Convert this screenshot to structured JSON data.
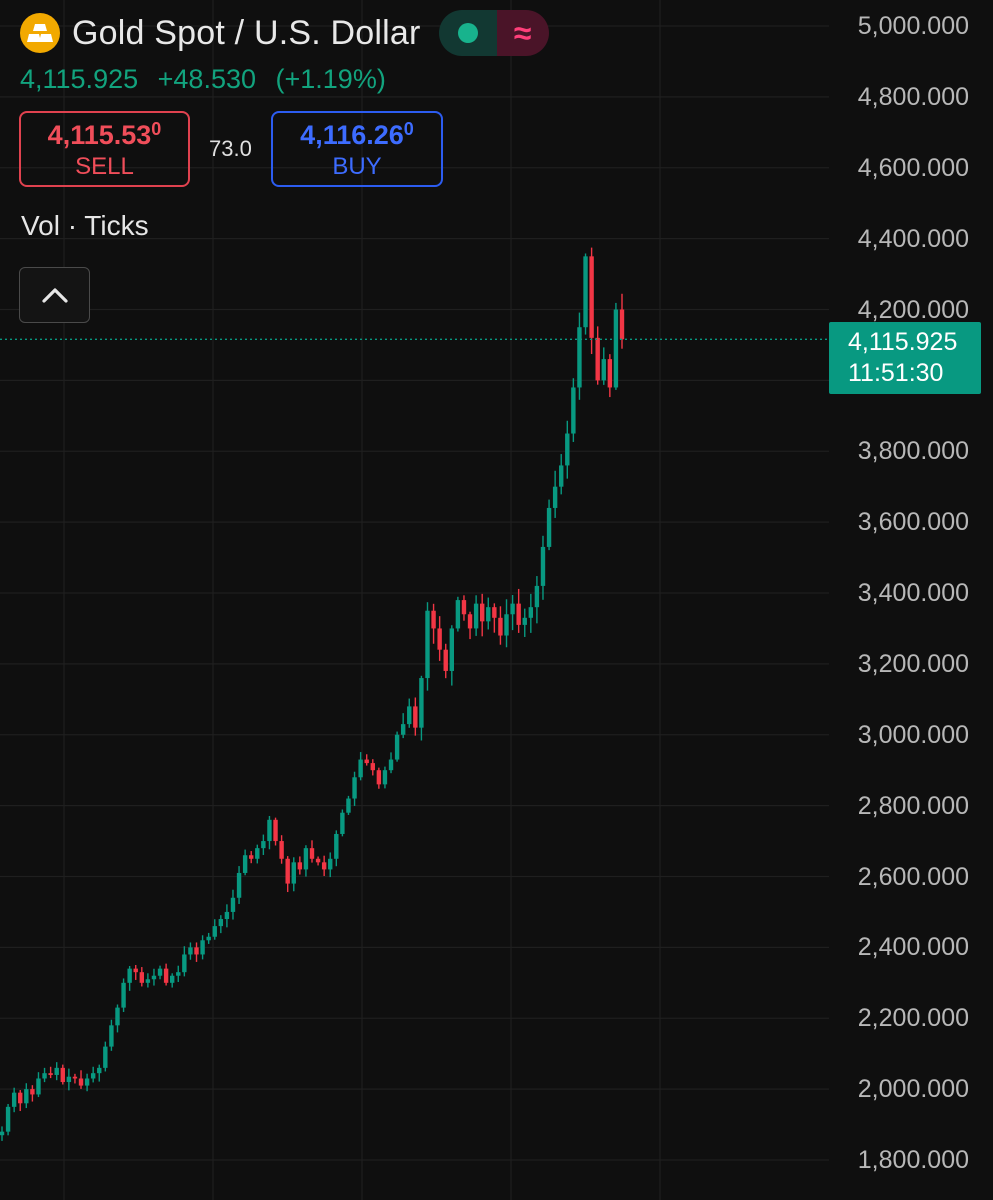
{
  "header": {
    "symbol_title": "Gold Spot / U.S. Dollar",
    "logo_icon": "gold-bars-icon",
    "status_open_icon": "market-open-dot-icon",
    "status_approx_icon": "approx-icon",
    "status_approx_glyph": "≈",
    "last_price": "4,115.925",
    "change": "+48.530",
    "change_percent": "(+1.19%)"
  },
  "trade": {
    "sell_price_main": "4,115.53",
    "sell_price_sup": "0",
    "sell_label": "SELL",
    "spread": "73.0",
    "buy_price_main": "4,116.26",
    "buy_price_sup": "0",
    "buy_label": "BUY"
  },
  "indicator": {
    "label": "Vol · Ticks",
    "collapse_icon": "chevron-up-icon"
  },
  "last_price_tag": {
    "price": "4,115.925",
    "countdown": "11:51:30"
  },
  "colors": {
    "background": "#0f0f0f",
    "up": "#089981",
    "down": "#f23645",
    "grid": "#1f1f1f",
    "last_price_line": "#089981"
  },
  "chart_data": {
    "type": "line",
    "title": "Gold Spot / U.S. Dollar",
    "xlabel": "",
    "ylabel": "",
    "ylim": [
      1750,
      5050
    ],
    "grid": true,
    "y_ticks": [
      "5,000.000",
      "4,800.000",
      "4,600.000",
      "4,400.000",
      "4,200.000",
      "3,800.000",
      "3,600.000",
      "3,400.000",
      "3,200.000",
      "3,000.000",
      "2,800.000",
      "2,600.000",
      "2,400.000",
      "2,200.000",
      "2,000.000",
      "1,800.000"
    ],
    "y_tick_values": [
      5000,
      4800,
      4600,
      4400,
      4200,
      3800,
      3600,
      3400,
      3200,
      3000,
      2800,
      2600,
      2400,
      2200,
      2000,
      1800
    ],
    "last_price": 4115.925,
    "series": [
      {
        "values": [
          1880,
          1950,
          1990,
          1960,
          2000,
          1985,
          2030,
          2045,
          2040,
          2060,
          2020,
          2035,
          2030,
          2010,
          2030,
          2045,
          2060,
          2120,
          2180,
          2230,
          2300,
          2340,
          2330,
          2300,
          2310,
          2320,
          2340,
          2300,
          2320,
          2330,
          2380,
          2400,
          2380,
          2420,
          2430,
          2460,
          2480,
          2500,
          2540,
          2610,
          2660,
          2650,
          2680,
          2700,
          2760,
          2700,
          2650,
          2580,
          2640,
          2620,
          2680,
          2650,
          2640,
          2620,
          2650,
          2720,
          2780,
          2820,
          2880,
          2930,
          2920,
          2900,
          2860,
          2900,
          2930,
          3000,
          3030,
          3080,
          3020,
          3160,
          3350,
          3300,
          3240,
          3180,
          3300,
          3380,
          3340,
          3300,
          3370,
          3320,
          3360,
          3330,
          3280,
          3340,
          3370,
          3310,
          3330,
          3360,
          3420,
          3530,
          3640,
          3700,
          3760,
          3850,
          3980,
          4150,
          4350,
          4120,
          4000,
          4060,
          3980,
          4200,
          4115.925
        ]
      }
    ]
  }
}
